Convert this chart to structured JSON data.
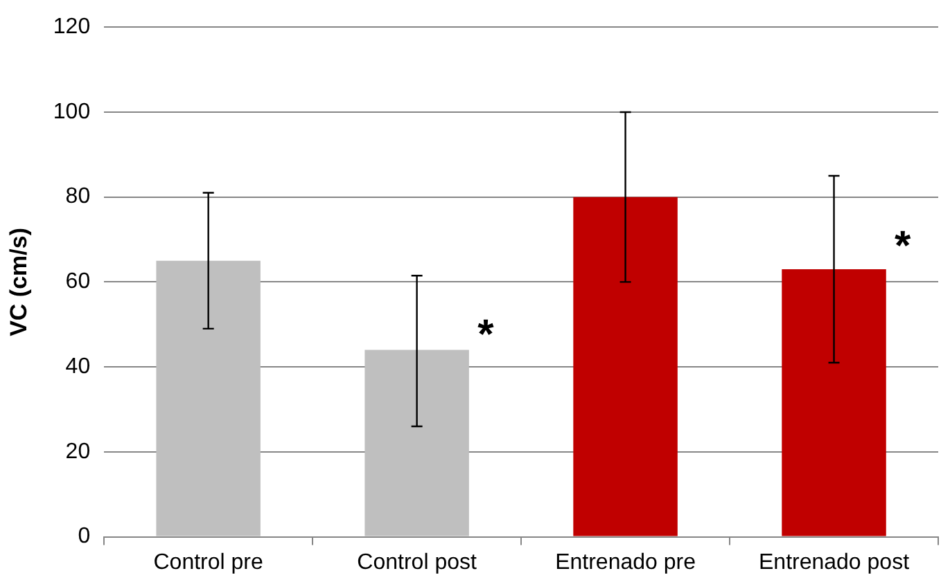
{
  "chart_data": {
    "type": "bar",
    "ylabel": "VC (cm/s)",
    "categories": [
      "Control pre",
      "Control post",
      "Entrenado pre",
      "Entrenado post"
    ],
    "values": [
      65,
      44,
      80,
      63
    ],
    "colors": [
      "#bfbfbf",
      "#bfbfbf",
      "#c00000",
      "#c00000"
    ],
    "errors": [
      [
        49,
        81
      ],
      [
        26,
        61.5
      ],
      [
        60,
        100
      ],
      [
        41,
        85
      ]
    ],
    "ylim": [
      0,
      120
    ],
    "yticks": [
      0,
      20,
      40,
      60,
      80,
      100,
      120
    ],
    "grid": "y",
    "legend": false,
    "annotations": [
      {
        "text": "*",
        "x": "Control post",
        "y": 49
      },
      {
        "text": "*",
        "x": "Entrenado post",
        "y": 70
      }
    ]
  }
}
